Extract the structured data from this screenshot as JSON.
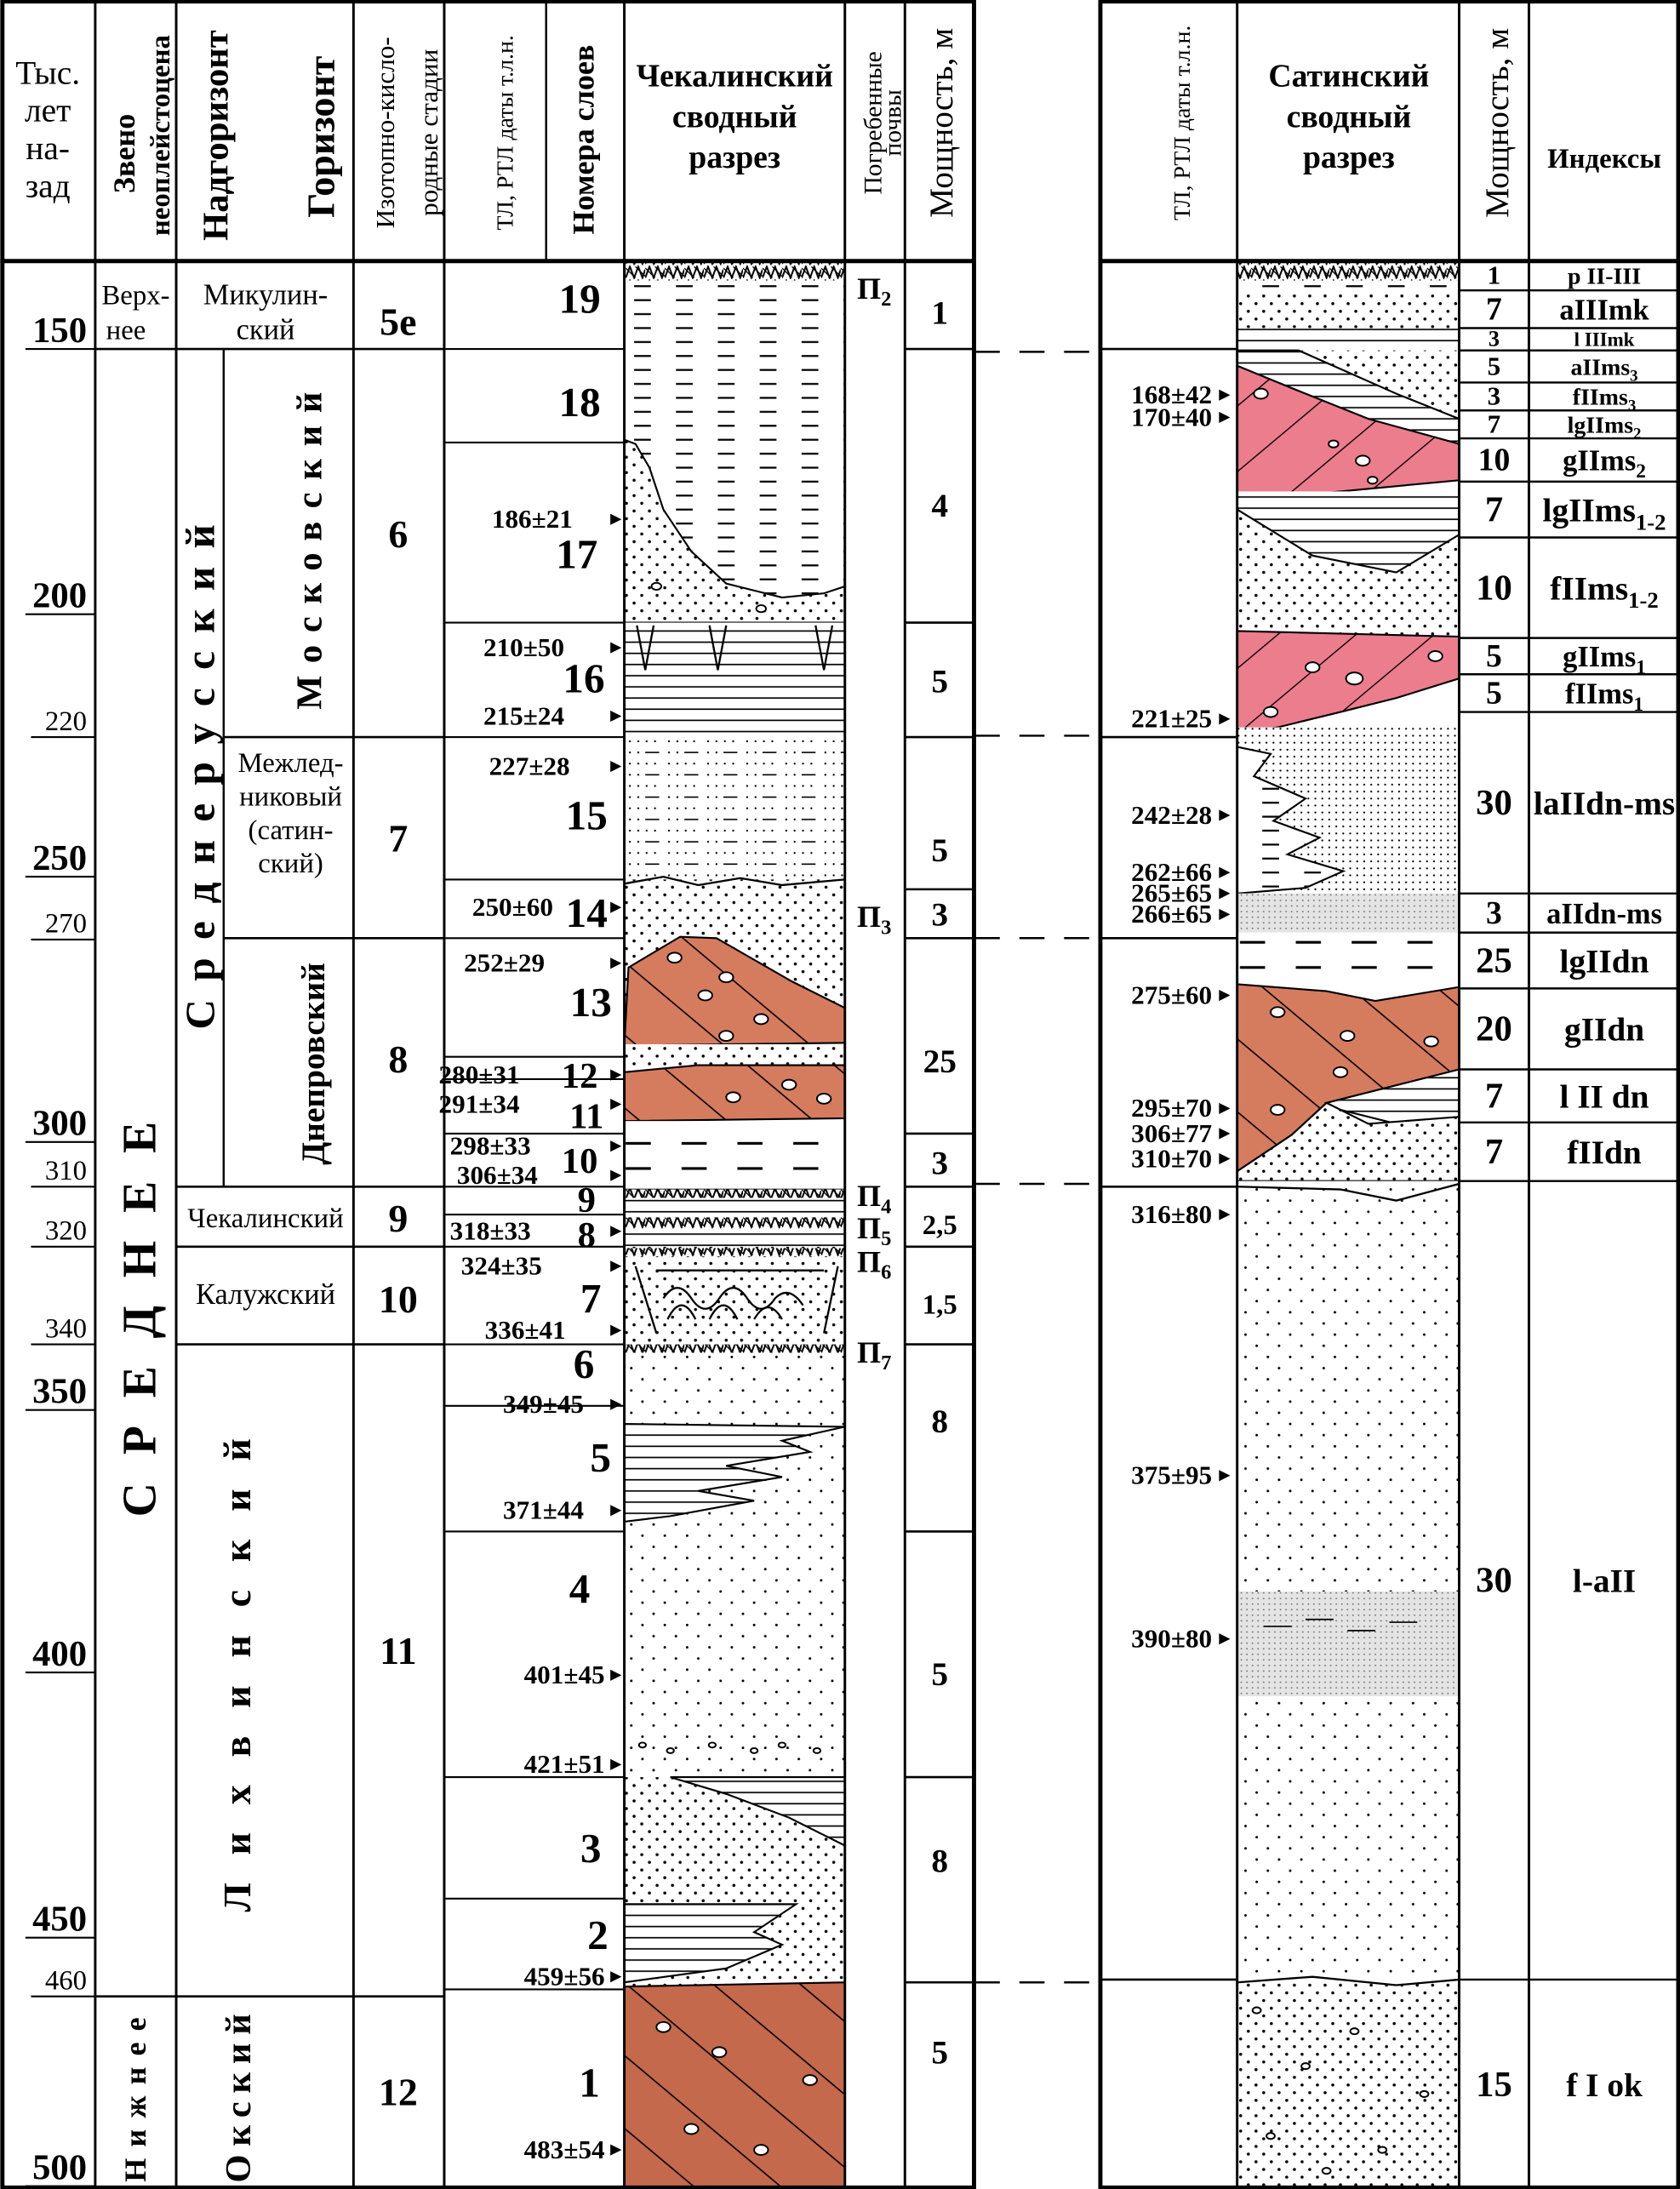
{
  "colors": {
    "moraine_brown": "#d67c5e",
    "moraine_dark": "#c4694b",
    "moraine_pink": "#ec7d8d",
    "stipple_gray": "#e4e4e4",
    "line": "#000000"
  },
  "left_header": {
    "age": [
      "Тыс.",
      "лет",
      "на-",
      "зад"
    ],
    "zveno": [
      "Звено",
      "неоплейстоцена"
    ],
    "nadgorizont": "Надгоризонт",
    "gorizont": "Горизонт",
    "isotope": [
      "Изотопно-кисло-",
      "родные стадии"
    ],
    "tl_dates": "ТЛ, РТЛ даты т.л.н.",
    "layer_numbers": "Номера слоев",
    "section": [
      "Чекалинский",
      "сводный",
      "разрез"
    ],
    "soils": [
      "Погребенные",
      "почвы"
    ],
    "thickness": "Мощность, м"
  },
  "right_header": {
    "tl_dates": "ТЛ, РТЛ даты т.л.н.",
    "section": [
      "Сатинский",
      "сводный",
      "разрез"
    ],
    "thickness": "Мощность, м",
    "indices": "Индексы"
  },
  "age_ticks": [
    "150",
    "200",
    "220",
    "250",
    "270",
    "300",
    "310",
    "320",
    "340",
    "350",
    "400",
    "450",
    "460",
    "500"
  ],
  "zveno": {
    "upper": [
      "Верх-",
      "нее"
    ],
    "middle": "СРЕДНЕЕ",
    "lower": "Нижнее"
  },
  "nadgorizont": {
    "mikulino": [
      "Микулин-",
      "ский"
    ],
    "srednerussky": "Среднерусский",
    "chekalin": "Чекалинский",
    "kaluga": "Калужский",
    "likhvin": "Лихвинский",
    "oka": "Окский"
  },
  "gorizont": {
    "moscow": "Московский",
    "interglacial": [
      "Межлед-",
      "никовый",
      "(сатин-",
      "ский)"
    ],
    "dnieper": "Днепровский"
  },
  "isotope_stages": [
    "5e",
    "6",
    "7",
    "8",
    "9",
    "10",
    "11",
    "12"
  ],
  "layers": [
    "19",
    "18",
    "17",
    "16",
    "15",
    "14",
    "13",
    "12",
    "11",
    "10",
    "9",
    "8",
    "7",
    "6",
    "5",
    "4",
    "3",
    "2",
    "1"
  ],
  "left_dates": [
    "186±21",
    "210±50",
    "215±24",
    "227±28",
    "250±60",
    "252±29",
    "280±31",
    "291±34",
    "298±33",
    "306±34",
    "318±33",
    "324±35",
    "336±41",
    "349±45",
    "371±44",
    "401±45",
    "421±51",
    "459±56",
    "483±54"
  ],
  "soils": [
    {
      "main": "П",
      "sub": "2"
    },
    {
      "main": "П",
      "sub": "3"
    },
    {
      "main": "П",
      "sub": "4"
    },
    {
      "main": "П",
      "sub": "5"
    },
    {
      "main": "П",
      "sub": "6"
    },
    {
      "main": "П",
      "sub": "7"
    }
  ],
  "left_thickness": [
    "1",
    "4",
    "5",
    "5",
    "3",
    "25",
    "3",
    "2,5",
    "1,5",
    "8",
    "5",
    "8",
    "5"
  ],
  "right_dates": [
    "168±42",
    "170±40",
    "221±25",
    "242±28",
    "262±66",
    "265±65",
    "266±65",
    "275±60",
    "295±70",
    "306±77",
    "310±70",
    "316±80",
    "375±95",
    "390±80"
  ],
  "right_rows": [
    {
      "thickness": "1",
      "index": "p II-III",
      "sub": ""
    },
    {
      "thickness": "7",
      "index": "aIIImk",
      "sub": ""
    },
    {
      "thickness": "3",
      "index": "l IIImk",
      "sub": ""
    },
    {
      "thickness": "5",
      "index": "aIIms",
      "sub": "3"
    },
    {
      "thickness": "3",
      "index": "fIIms",
      "sub": "3"
    },
    {
      "thickness": "7",
      "index": "lgIIms",
      "sub": "2"
    },
    {
      "thickness": "10",
      "index": "gIIms",
      "sub": "2"
    },
    {
      "thickness": "7",
      "index": "lgIIms",
      "sub": "1-2"
    },
    {
      "thickness": "10",
      "index": "fIIms",
      "sub": "1-2"
    },
    {
      "thickness": "5",
      "index": "gIIms",
      "sub": "1"
    },
    {
      "thickness": "5",
      "index": "fIIms",
      "sub": "1"
    },
    {
      "thickness": "30",
      "index": "laIIdn-ms",
      "sub": ""
    },
    {
      "thickness": "3",
      "index": "aIIdn-ms",
      "sub": ""
    },
    {
      "thickness": "25",
      "index": "lgIIdn",
      "sub": ""
    },
    {
      "thickness": "20",
      "index": "gIIdn",
      "sub": ""
    },
    {
      "thickness": "7",
      "index": "l II dn",
      "sub": ""
    },
    {
      "thickness": "7",
      "index": "fIIdn",
      "sub": ""
    },
    {
      "thickness": "30",
      "index": "l-aII",
      "sub": ""
    },
    {
      "thickness": "15",
      "index": "f I ok",
      "sub": ""
    }
  ]
}
